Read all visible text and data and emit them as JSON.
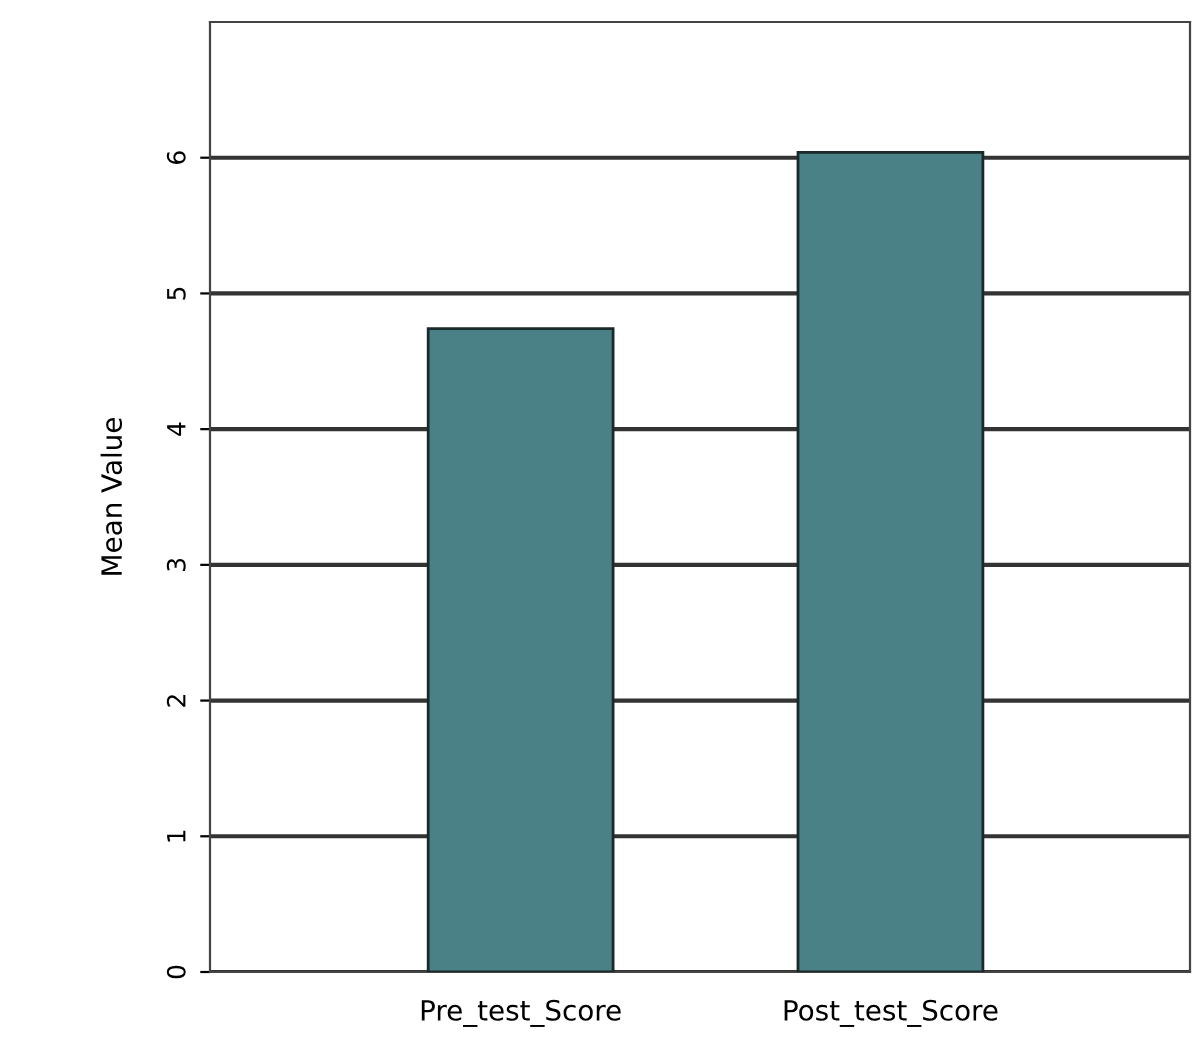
{
  "chart_data": {
    "type": "bar",
    "ylabel": "Mean Value",
    "categories": [
      "Pre_test_Score",
      "Post_test_Score"
    ],
    "values": [
      4.74,
      6.04
    ],
    "color": "#4a8187",
    "ylim": [
      0,
      7
    ],
    "yticks": [
      0,
      1,
      2,
      3,
      4,
      5,
      6
    ],
    "grid": "y",
    "legend": false
  }
}
